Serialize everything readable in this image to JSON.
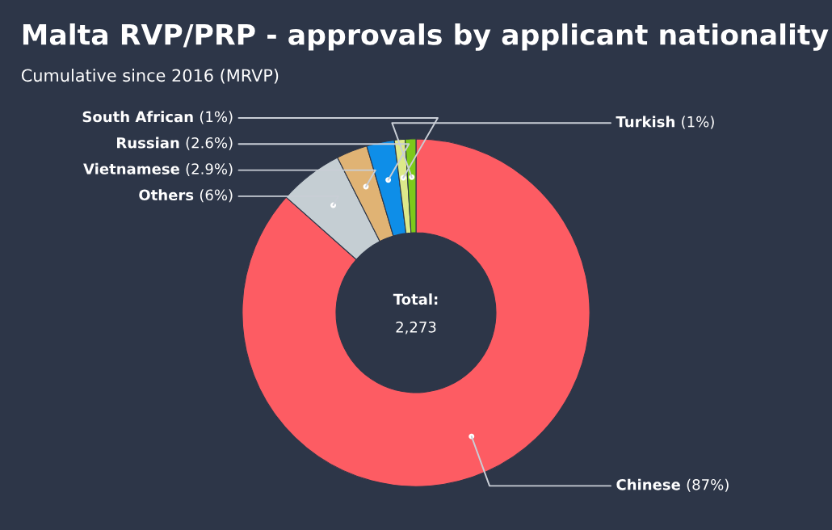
{
  "chart_data": {
    "type": "donut",
    "title": "Malta RVP/PRP - approvals by applicant nationality",
    "subtitle": "Cumulative since 2016 (MRVP)",
    "categories": [
      "Chinese",
      "Others",
      "Vietnamese",
      "Russian",
      "South African",
      "Turkish"
    ],
    "values": [
      87,
      6,
      2.9,
      2.6,
      1,
      1
    ],
    "value_labels": [
      "(87%)",
      "(6%)",
      "(2.9%)",
      "(2.6%)",
      "(1%)",
      "(1%)"
    ],
    "colors": [
      "#fd5c63",
      "#c5ced3",
      "#e0b374",
      "#0e8ee8",
      "#dde98a",
      "#7ec91a"
    ],
    "annotations": [
      "Total:",
      "2,273"
    ],
    "legend": false
  }
}
